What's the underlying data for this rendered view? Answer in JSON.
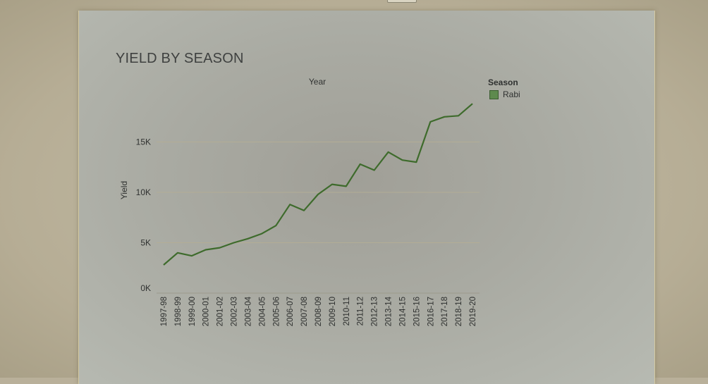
{
  "chart_data": {
    "type": "line",
    "title": "YIELD BY SEASON",
    "xlabel": "Year",
    "ylabel": "Yield",
    "x": [
      "1997-98",
      "1998-99",
      "1999-00",
      "2000-01",
      "2001-02",
      "2002-03",
      "2003-04",
      "2004-05",
      "2005-06",
      "2006-07",
      "2007-08",
      "2008-09",
      "2009-10",
      "2010-11",
      "2011-12",
      "2012-13",
      "2013-14",
      "2014-15",
      "2015-16",
      "2016-17",
      "2017-18",
      "2018-19",
      "2019-20"
    ],
    "series": [
      {
        "name": "Rabi",
        "color": "#3e6b2c",
        "values": [
          2800,
          4000,
          3700,
          4300,
          4500,
          5000,
          5400,
          5900,
          6700,
          8800,
          8200,
          9800,
          10800,
          10600,
          12800,
          12200,
          14000,
          13200,
          13000,
          17000,
          17500,
          17600,
          18800
        ]
      }
    ],
    "yticks": [
      {
        "value": 0,
        "label": "0K"
      },
      {
        "value": 5000,
        "label": "5K"
      },
      {
        "value": 10000,
        "label": "10K"
      },
      {
        "value": 15000,
        "label": "15K"
      }
    ],
    "ylim": [
      0,
      20000
    ],
    "grid": true,
    "legend": {
      "title": "Season",
      "placement": "right"
    }
  }
}
